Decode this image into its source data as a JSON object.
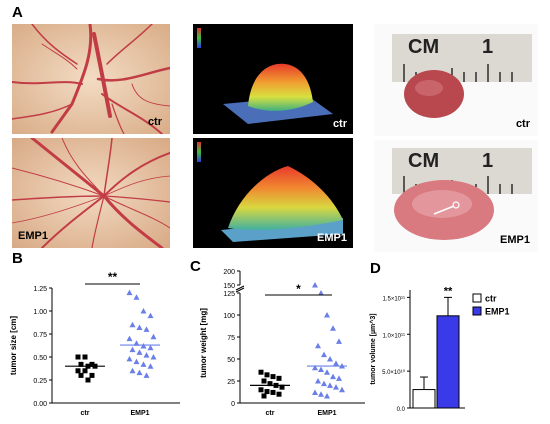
{
  "panel_labels": {
    "A": "A",
    "B": "B",
    "C": "C",
    "D": "D"
  },
  "photo_tags": {
    "row1": [
      "ctr",
      "ctr",
      "ctr"
    ],
    "row2": [
      "EMP1",
      "EMP1",
      "EMP1"
    ],
    "ruler_cm": "CM",
    "ruler_one": "1"
  },
  "colors": {
    "ctr": "#000000",
    "emp1": "#6a7fe8",
    "emp1_bar": "#3a3ae8",
    "cam_bg": "#e9c7a8",
    "vessel": "#c8434a",
    "heat_bg": "#000000"
  },
  "chart_data": [
    {
      "type": "scatter",
      "panel": "B",
      "ylabel": "tumor size [cm]",
      "categories": [
        "ctr",
        "EMP1"
      ],
      "ylim": [
        0,
        1.25
      ],
      "yticks": [
        "0.00",
        "0.25",
        "0.50",
        "0.75",
        "1.00",
        "1.25"
      ],
      "yticks_values": [
        0,
        0.25,
        0.5,
        0.75,
        1.0,
        1.25
      ],
      "significance": "**",
      "series": [
        {
          "name": "ctr",
          "marker": "square",
          "mean": 0.4,
          "values": [
            0.5,
            0.5,
            0.42,
            0.42,
            0.4,
            0.4,
            0.35,
            0.35,
            0.3,
            0.3,
            0.25
          ]
        },
        {
          "name": "EMP1",
          "marker": "triangle",
          "mean": 0.63,
          "values": [
            1.2,
            1.15,
            1.0,
            0.95,
            0.85,
            0.82,
            0.8,
            0.72,
            0.7,
            0.65,
            0.62,
            0.6,
            0.58,
            0.55,
            0.52,
            0.5,
            0.48,
            0.45,
            0.42,
            0.4,
            0.35,
            0.33,
            0.3
          ]
        }
      ]
    },
    {
      "type": "scatter",
      "panel": "C",
      "ylabel": "tumor weight [mg]",
      "categories": [
        "ctr",
        "EMP1"
      ],
      "yticks": [
        "0",
        "25",
        "50",
        "75",
        "100",
        "125",
        "150",
        "200"
      ],
      "yticks_values": [
        0,
        25,
        50,
        75,
        100,
        125,
        150,
        200
      ],
      "axis_break": [
        125,
        150
      ],
      "significance": "*",
      "series": [
        {
          "name": "ctr",
          "marker": "square",
          "mean": 20,
          "values": [
            35,
            32,
            30,
            28,
            25,
            22,
            20,
            18,
            15,
            13,
            12,
            10,
            8
          ]
        },
        {
          "name": "EMP1",
          "marker": "triangle",
          "mean": 42,
          "values": [
            150,
            125,
            100,
            85,
            70,
            65,
            55,
            50,
            45,
            42,
            40,
            38,
            35,
            30,
            28,
            25,
            22,
            20,
            18,
            15,
            12,
            10,
            8
          ]
        }
      ]
    },
    {
      "type": "bar",
      "panel": "D",
      "ylabel": "tumor volume [µm^3]",
      "categories": [
        "ctr",
        "EMP1"
      ],
      "values": [
        25000000000,
        125000000000
      ],
      "errors": [
        17000000000,
        25000000000
      ],
      "ylim": [
        0,
        160000000000
      ],
      "yticks": [
        "0.0",
        "5.0×10¹⁰",
        "1.0×10¹¹",
        "1.5×10¹¹"
      ],
      "yticks_values": [
        0,
        50000000000,
        100000000000,
        150000000000
      ],
      "significance": "**",
      "legend": [
        "ctr",
        "EMP1"
      ],
      "legend_position": "top-right"
    }
  ]
}
